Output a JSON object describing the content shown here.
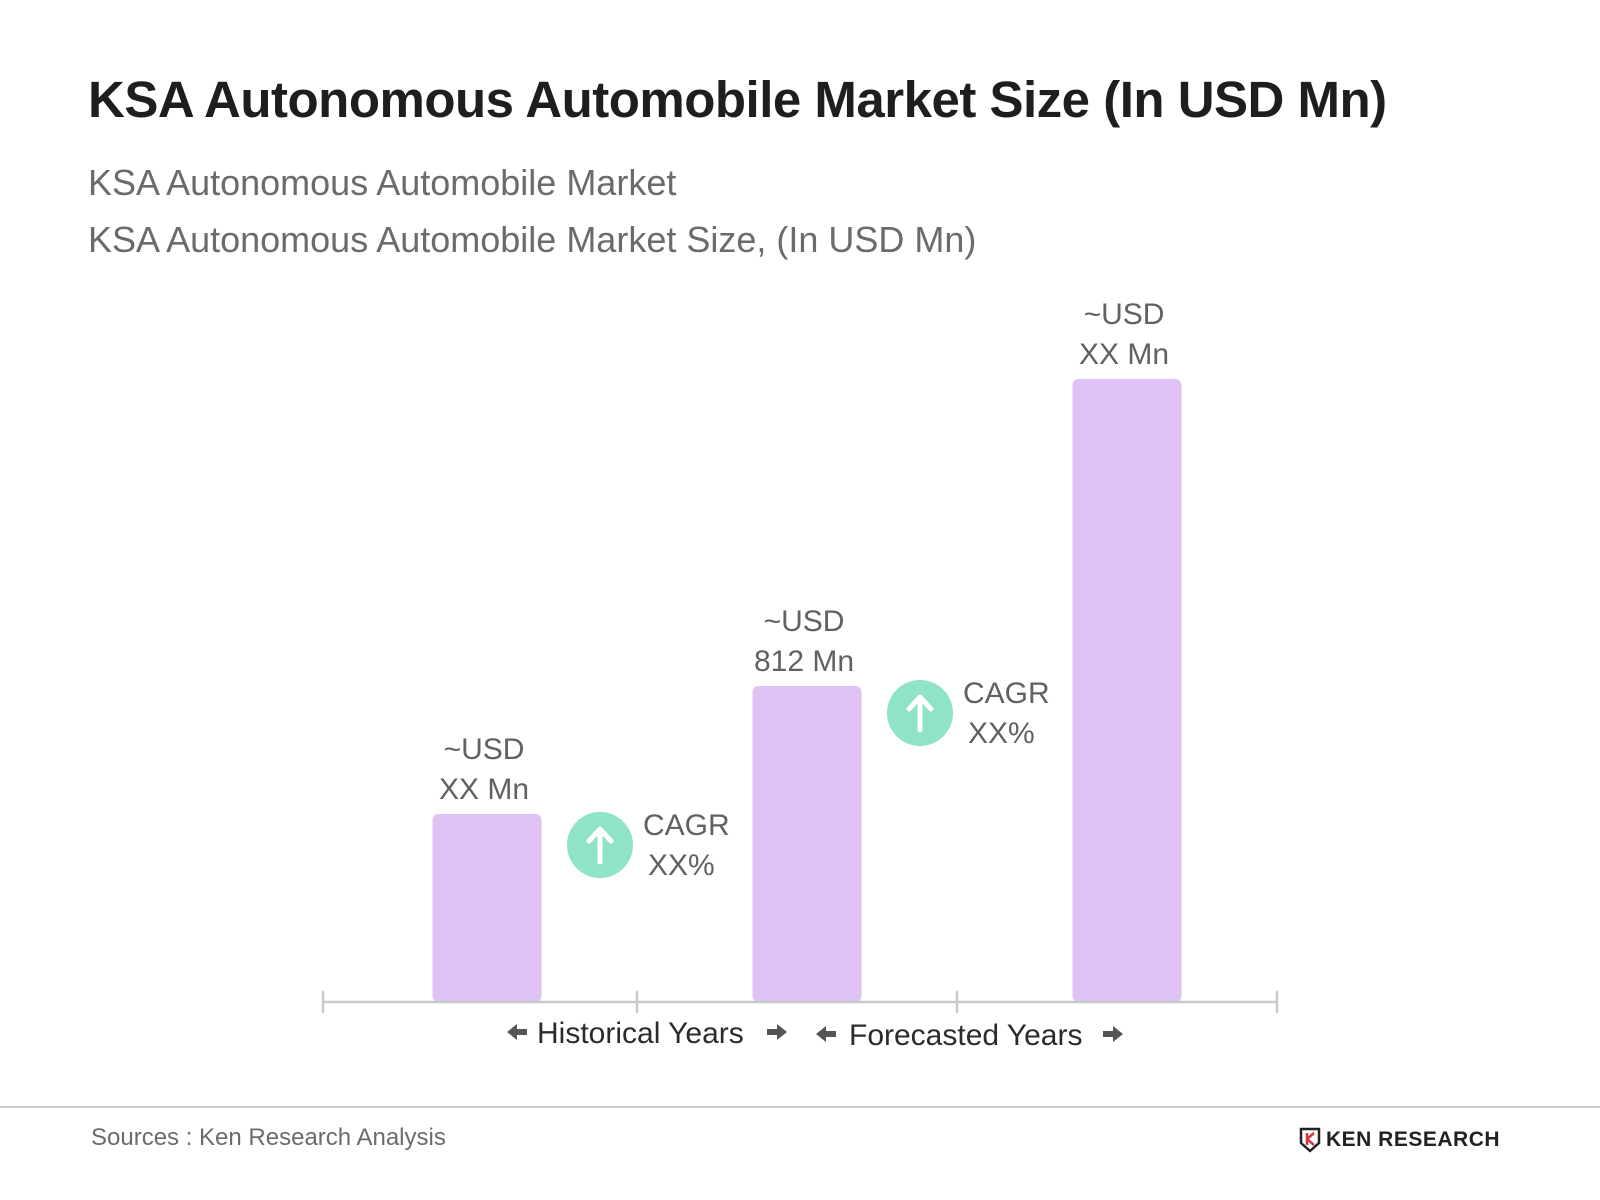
{
  "header": {
    "title": "KSA Autonomous Automobile Market Size (In USD Mn)",
    "subtitle_1": "KSA Autonomous Automobile Market",
    "subtitle_2": "KSA Autonomous Automobile Market Size, (In USD Mn)"
  },
  "chart_data": {
    "type": "bar",
    "title": "KSA Autonomous Automobile Market Size (In USD Mn)",
    "categories": [
      "",
      "",
      ""
    ],
    "values": [
      483,
      812,
      1600
    ],
    "value_labels": [
      [
        "~USD",
        "XX Mn"
      ],
      [
        "~USD",
        "812 Mn"
      ],
      [
        "~USD",
        "XX Mn"
      ]
    ],
    "bar_color": "#dfc3f7",
    "cagr": [
      {
        "line1": "CAGR",
        "line2": "XX%"
      },
      {
        "line1": "CAGR",
        "line2": "XX%"
      }
    ],
    "cagr_icon": "arrow-up-circle-icon",
    "cagr_color": "#8fe3c6",
    "periods": [
      "Historical Years",
      "Forecasted Years"
    ],
    "axis_color": "#c9c9c9",
    "grid": false,
    "legend": "none"
  },
  "footer": {
    "source": "Sources : Ken Research Analysis",
    "logo_text": "KEN RESEARCH",
    "logo_icon": "ken-research-logo-icon"
  }
}
